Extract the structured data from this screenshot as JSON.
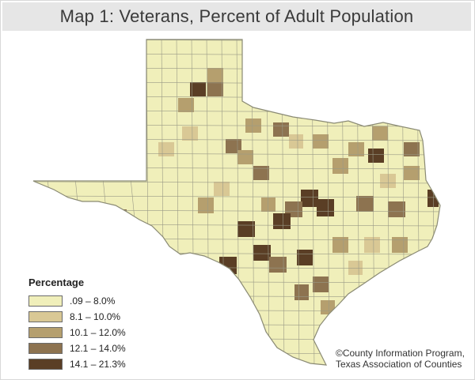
{
  "title": "Map 1: Veterans, Percent of Adult Population",
  "legend": {
    "title": "Percentage",
    "items": [
      {
        "label": ".09 – 8.0%",
        "color": "#f0efba"
      },
      {
        "label": "8.1 – 10.0%",
        "color": "#d9c895"
      },
      {
        "label": "10.1 – 12.0%",
        "color": "#b59f6e"
      },
      {
        "label": "12.1 – 14.0%",
        "color": "#8d7350"
      },
      {
        "label": "14.1 – 21.3%",
        "color": "#5a3e25"
      }
    ]
  },
  "credit": {
    "line1": "©County Information Program,",
    "line2": "Texas Association of Counties"
  },
  "colors": {
    "county_border": "#9a9a86",
    "outline": "#8a8a74"
  }
}
